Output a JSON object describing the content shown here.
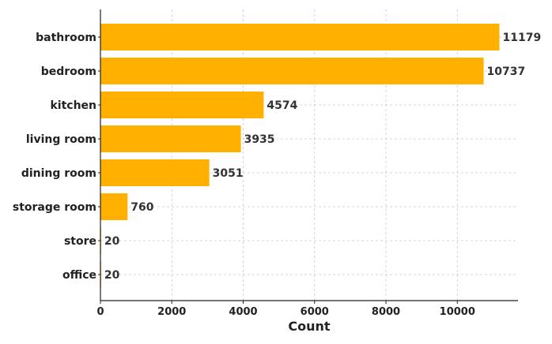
{
  "chart_data": {
    "type": "bar",
    "orientation": "horizontal",
    "categories": [
      "bathroom",
      "bedroom",
      "kitchen",
      "living room",
      "dining room",
      "storage room",
      "store",
      "office"
    ],
    "values": [
      11179,
      10737,
      4574,
      3935,
      3051,
      760,
      20,
      20
    ],
    "title": "",
    "xlabel": "Count",
    "ylabel": "",
    "xlim": [
      0,
      11700
    ],
    "x_ticks": [
      0,
      2000,
      4000,
      6000,
      8000,
      10000
    ],
    "grid": true,
    "bar_color": "#FFB000",
    "data_labels": [
      "11179",
      "10737",
      "4574",
      "3935",
      "3051",
      "760",
      "20",
      "20"
    ]
  }
}
